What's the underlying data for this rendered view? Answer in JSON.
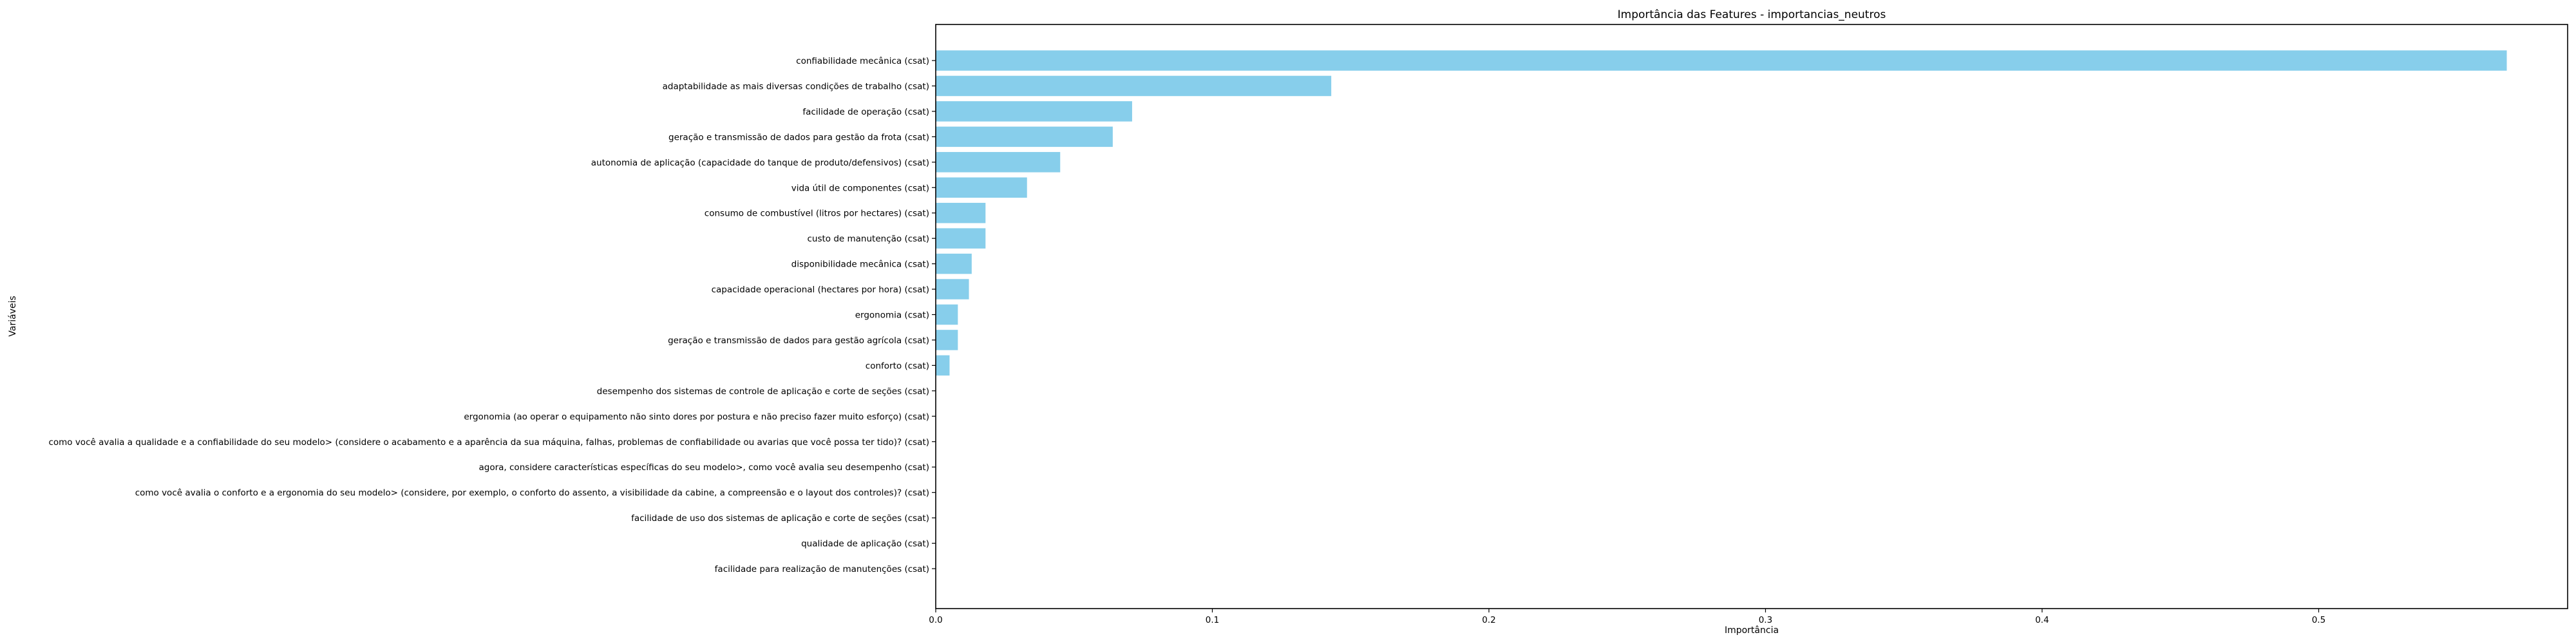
{
  "chart_data": {
    "type": "bar",
    "orientation": "horizontal",
    "title": "Importância das Features - importancias_neutros",
    "xlabel": "Importância",
    "ylabel": "Variáveis",
    "xlim": [
      0,
      0.59
    ],
    "xticks": [
      "0.0",
      "0.1",
      "0.2",
      "0.3",
      "0.4",
      "0.5"
    ],
    "bar_color": "#87ceeb",
    "categories": [
      "confiabilidade mecânica (csat)",
      "adaptabilidade as mais diversas condições de trabalho (csat)",
      "facilidade de operação (csat)",
      "geração e transmissão de dados para gestão da frota (csat)",
      "autonomia de aplicação (capacidade do tanque de produto/defensivos) (csat)",
      "vida útil de componentes (csat)",
      "consumo de combustível (litros por hectares) (csat)",
      "custo de manutenção (csat)",
      "disponibilidade mecânica (csat)",
      "capacidade operacional (hectares por hora) (csat)",
      "ergonomia (csat)",
      "geração e transmissão de dados para gestão agrícola (csat)",
      "conforto (csat)",
      "desempenho dos sistemas de controle de aplicação e corte de seções (csat)",
      "ergonomia (ao operar o equipamento não sinto dores por postura e não preciso fazer muito esforço) (csat)",
      "como você avalia a qualidade e a confiabilidade do seu modelo> (considere o acabamento e a aparência da sua máquina, falhas, problemas de confiabilidade ou avarias que você possa ter tido)? (csat)",
      "agora, considere características específicas do seu modelo>, como você avalia seu desempenho (csat)",
      "como você avalia o conforto e a ergonomia do seu modelo>  (considere, por exemplo, o conforto do assento, a visibilidade da cabine, a compreensão e o layout dos controles)? (csat)",
      "facilidade de uso dos sistemas de aplicação e corte de seções (csat)",
      "qualidade de aplicação (csat)",
      "facilidade para realização de manutenções (csat)"
    ],
    "values": [
      0.568,
      0.143,
      0.071,
      0.064,
      0.045,
      0.033,
      0.018,
      0.018,
      0.013,
      0.012,
      0.008,
      0.008,
      0.005,
      0,
      0,
      0,
      0,
      0,
      0,
      0,
      0
    ]
  }
}
